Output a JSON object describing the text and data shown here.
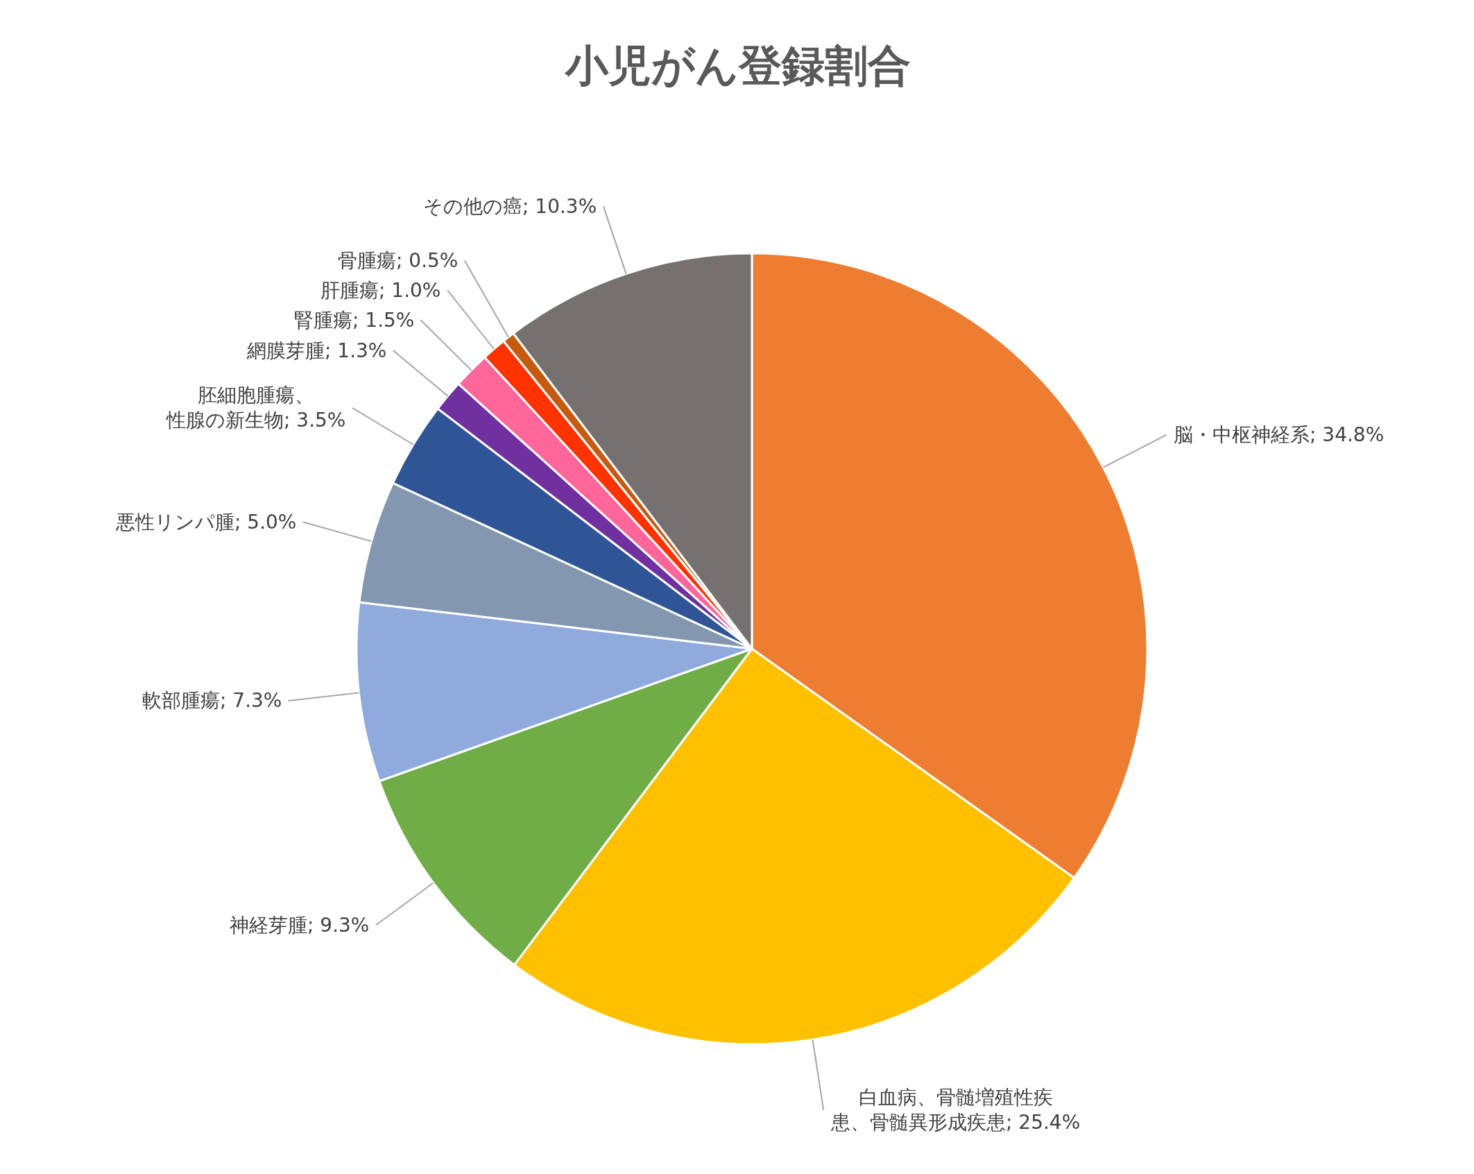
{
  "chart_data": {
    "type": "pie",
    "title": "小児がん登録割合",
    "categories": [
      "脳・中枢神経系",
      "白血病、骨髄増殖性疾患、骨髄異形成疾患",
      "神経芽腫",
      "軟部腫瘍",
      "悪性リンパ腫",
      "胚細胞腫瘍、性腺の新生物",
      "網膜芽腫",
      "腎腫瘍",
      "肝腫瘍",
      "骨腫瘍",
      "その他の癌"
    ],
    "values": [
      34.8,
      25.4,
      9.3,
      7.3,
      5.0,
      3.5,
      1.3,
      1.5,
      1.0,
      0.5,
      10.3
    ],
    "value_labels": [
      "34.8%",
      "25.4%",
      "9.3%",
      "7.3%",
      "5.0%",
      "3.5%",
      "1.3%",
      "1.5%",
      "1.0%",
      "0.5%",
      "10.3%"
    ],
    "colors": [
      "#ed7d31",
      "#ffc000",
      "#70ad47",
      "#8faadc",
      "#8497b0",
      "#2f5597",
      "#7030a0",
      "#ff6699",
      "#ff3300",
      "#c55a11",
      "#767171"
    ],
    "legend": false
  }
}
